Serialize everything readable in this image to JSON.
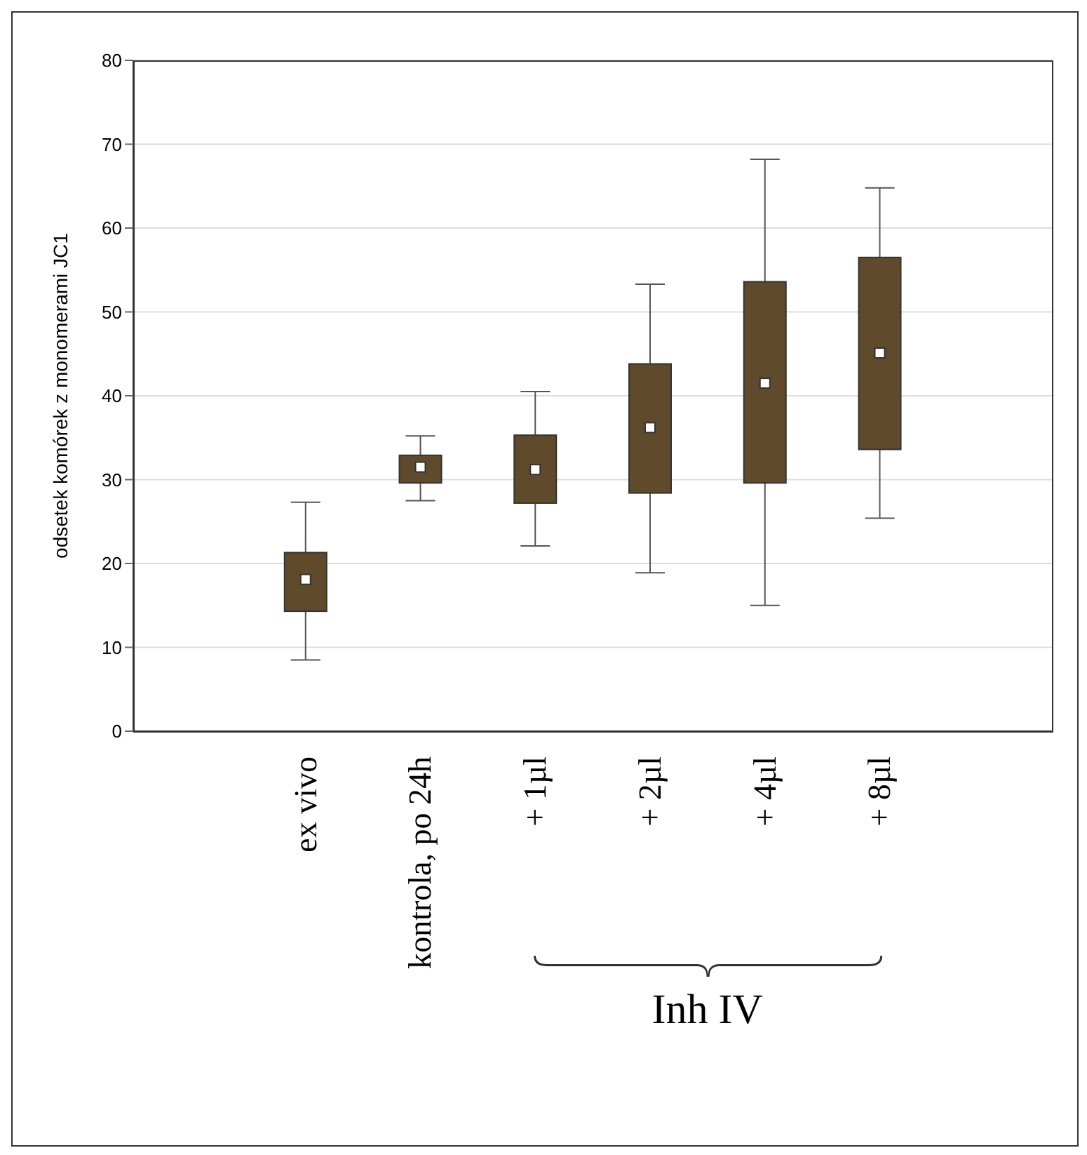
{
  "chart_data": {
    "type": "box",
    "ylabel": "odsetek komórek z monomerami JC1",
    "categories": [
      null,
      "ex vivo",
      "kontrola, po 24h",
      "+ 1µl",
      "+ 2µl",
      "+ 4µl",
      "+ 8µl",
      null
    ],
    "boxes": [
      null,
      {
        "low": 8.5,
        "q1": 14.3,
        "median": 18.1,
        "q3": 21.3,
        "high": 27.3
      },
      {
        "low": 27.5,
        "q1": 29.6,
        "median": 31.5,
        "q3": 32.9,
        "high": 35.2
      },
      {
        "low": 22.1,
        "q1": 27.2,
        "median": 31.2,
        "q3": 35.3,
        "high": 40.5
      },
      {
        "low": 18.9,
        "q1": 28.4,
        "median": 36.2,
        "q3": 43.8,
        "high": 53.3
      },
      {
        "low": 15,
        "q1": 29.6,
        "median": 41.5,
        "q3": 53.6,
        "high": 68.2
      },
      {
        "low": 25.4,
        "q1": 33.6,
        "median": 45.1,
        "q3": 56.5,
        "high": 64.8
      },
      null
    ],
    "color": "#5f4b2b",
    "ylim": [
      0,
      80
    ],
    "yticks": [
      0,
      10,
      20,
      30,
      40,
      50,
      60,
      70,
      80
    ],
    "grid": "y",
    "annotations": [
      "Inh IV"
    ]
  }
}
